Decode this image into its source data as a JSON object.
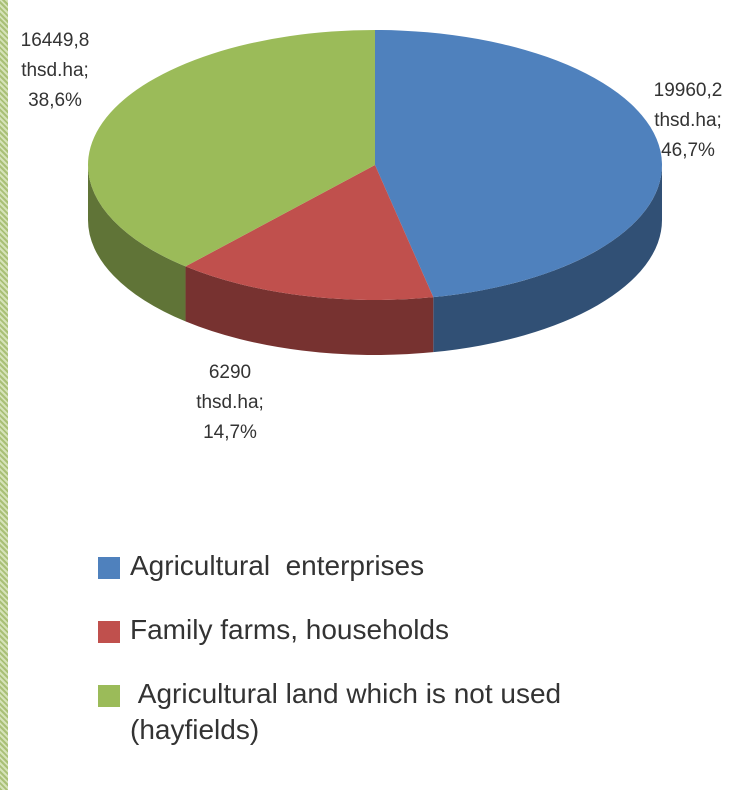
{
  "chart_data": {
    "type": "pie",
    "categories": [
      "Agricultural  enterprises",
      "Family farms, households",
      " Agricultural land which is not used (hayfields)"
    ],
    "values": [
      19960.2,
      6290,
      16449.8
    ],
    "value_labels": [
      "19960,2\nthsd.ha;\n46,7%",
      "6290\nthsd.ha;\n14,7%",
      "16449,8\nthsd.ha;\n38,6%"
    ],
    "colors": [
      "#4f81bd",
      "#c0504d",
      "#9bbb59"
    ],
    "legend": "bottom"
  }
}
